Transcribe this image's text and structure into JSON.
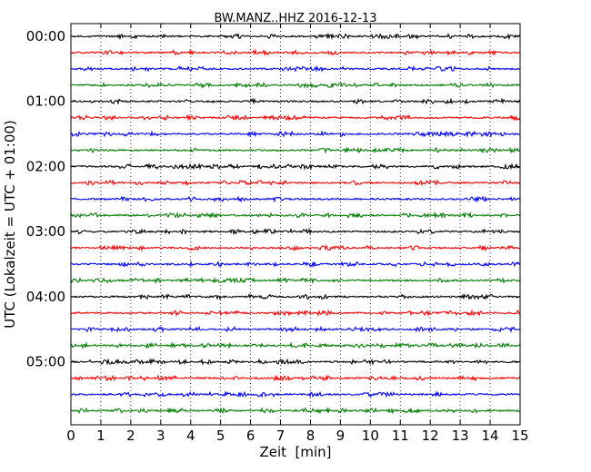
{
  "chart_data": {
    "type": "line",
    "title": "BW.MANZ..HHZ 2016-12-13",
    "xlabel": "Zeit  [min]",
    "ylabel": "UTC (Lokalzeit = UTC + 01:00)",
    "xlim": [
      0,
      15
    ],
    "x_ticks": [
      "0",
      "1",
      "2",
      "3",
      "4",
      "5",
      "6",
      "7",
      "8",
      "9",
      "10",
      "11",
      "12",
      "13",
      "14",
      "15"
    ],
    "y_ticks": [
      "00:00",
      "01:00",
      "02:00",
      "03:00",
      "04:00",
      "05:00"
    ],
    "minutes_per_line": 15,
    "line_count": 24,
    "grid": "vertical dotted at each minute",
    "colors": [
      "#000000",
      "#ff0000",
      "#0000ff",
      "#007f00"
    ]
  }
}
